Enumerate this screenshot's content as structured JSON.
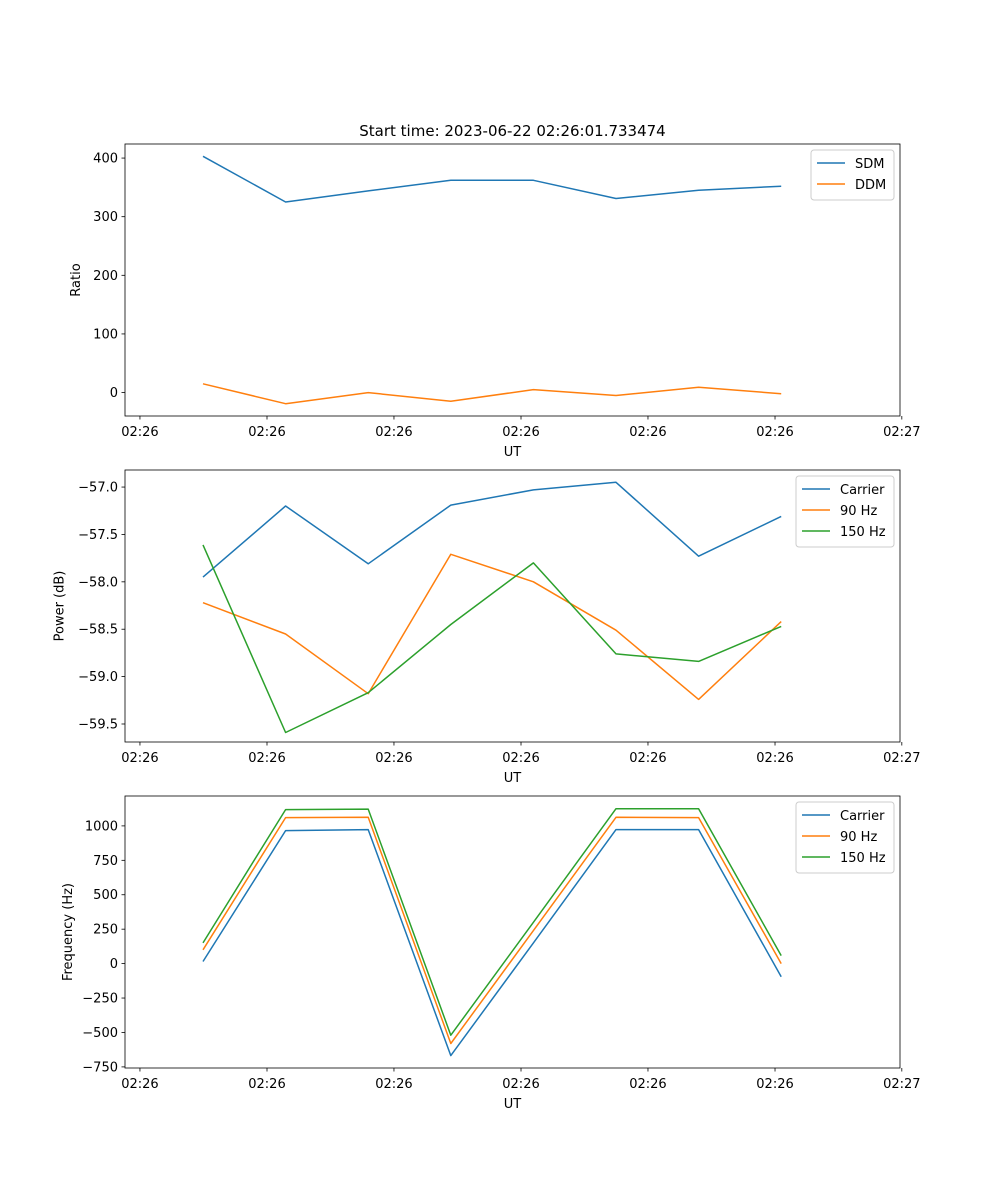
{
  "title": "Start time: 2023-06-22 02:26:01.733474",
  "colors": {
    "c0": "#1f77b4",
    "c1": "#ff7f0e",
    "c2": "#2ca02c"
  },
  "chart_data": [
    {
      "type": "line",
      "xlabel": "UT",
      "ylabel": "Ratio",
      "x": [
        0,
        1,
        2,
        3,
        4,
        5,
        6,
        7
      ],
      "xlim": [
        -0.944,
        8.438
      ],
      "xticks": [
        -0.763,
        0.775,
        2.312,
        3.85,
        5.387,
        6.925,
        8.46
      ],
      "xtick_labels": [
        "02:26",
        "02:26",
        "02:26",
        "02:26",
        "02:26",
        "02:26",
        "02:27"
      ],
      "ylim": [
        -40,
        424
      ],
      "yticks": [
        0,
        100,
        200,
        300,
        400
      ],
      "ytick_labels": [
        "0",
        "100",
        "200",
        "300",
        "400"
      ],
      "legend": "top-right",
      "series": [
        {
          "name": "SDM",
          "color": "#1f77b4",
          "values": [
            403,
            325,
            344,
            362,
            362,
            331,
            345,
            352
          ]
        },
        {
          "name": "DDM",
          "color": "#ff7f0e",
          "values": [
            15,
            -19,
            0,
            -15,
            5,
            -5,
            9,
            -2
          ]
        }
      ]
    },
    {
      "type": "line",
      "xlabel": "UT",
      "ylabel": "Power (dB)",
      "x": [
        0,
        1,
        2,
        3,
        4,
        5,
        6,
        7
      ],
      "xlim": [
        -0.944,
        8.438
      ],
      "xticks": [
        -0.763,
        0.775,
        2.312,
        3.85,
        5.387,
        6.925,
        8.46
      ],
      "xtick_labels": [
        "02:26",
        "02:26",
        "02:26",
        "02:26",
        "02:26",
        "02:26",
        "02:27"
      ],
      "ylim": [
        -59.69,
        -56.82
      ],
      "yticks": [
        -59.5,
        -59.0,
        -58.5,
        -58.0,
        -57.5,
        -57.0
      ],
      "ytick_labels": [
        "−59.5",
        "−59.0",
        "−58.5",
        "−58.0",
        "−57.5",
        "−57.0"
      ],
      "legend": "top-right",
      "series": [
        {
          "name": "Carrier",
          "color": "#1f77b4",
          "values": [
            -57.95,
            -57.2,
            -57.81,
            -57.19,
            -57.03,
            -56.95,
            -57.73,
            -57.31
          ]
        },
        {
          "name": "90 Hz",
          "color": "#ff7f0e",
          "values": [
            -58.22,
            -58.55,
            -59.18,
            -57.71,
            -58.0,
            -58.51,
            -59.24,
            -58.42
          ]
        },
        {
          "name": "150 Hz",
          "color": "#2ca02c",
          "values": [
            -57.61,
            -59.59,
            -59.17,
            -58.45,
            -57.8,
            -58.76,
            -58.84,
            -58.47
          ]
        }
      ]
    },
    {
      "type": "line",
      "xlabel": "UT",
      "ylabel": "Frequency (Hz)",
      "x": [
        0,
        1,
        2,
        3,
        4,
        5,
        6,
        7
      ],
      "xlim": [
        -0.944,
        8.438
      ],
      "xticks": [
        -0.763,
        0.775,
        2.312,
        3.85,
        5.387,
        6.925,
        8.46
      ],
      "xtick_labels": [
        "02:26",
        "02:26",
        "02:26",
        "02:26",
        "02:26",
        "02:26",
        "02:27"
      ],
      "ylim": [
        -758,
        1217
      ],
      "yticks": [
        -750,
        -500,
        -250,
        0,
        250,
        500,
        750,
        1000
      ],
      "ytick_labels": [
        "−750",
        "−500",
        "−250",
        "0",
        "250",
        "500",
        "750",
        "1000"
      ],
      "legend": "top-right",
      "series": [
        {
          "name": "Carrier",
          "color": "#1f77b4",
          "values": [
            15,
            966,
            973,
            -668,
            150,
            973,
            973,
            -95
          ]
        },
        {
          "name": "90 Hz",
          "color": "#ff7f0e",
          "values": [
            100,
            1060,
            1062,
            -580,
            240,
            1062,
            1060,
            0
          ]
        },
        {
          "name": "150 Hz",
          "color": "#2ca02c",
          "values": [
            150,
            1118,
            1122,
            -520,
            300,
            1125,
            1124,
            58
          ]
        }
      ]
    }
  ]
}
